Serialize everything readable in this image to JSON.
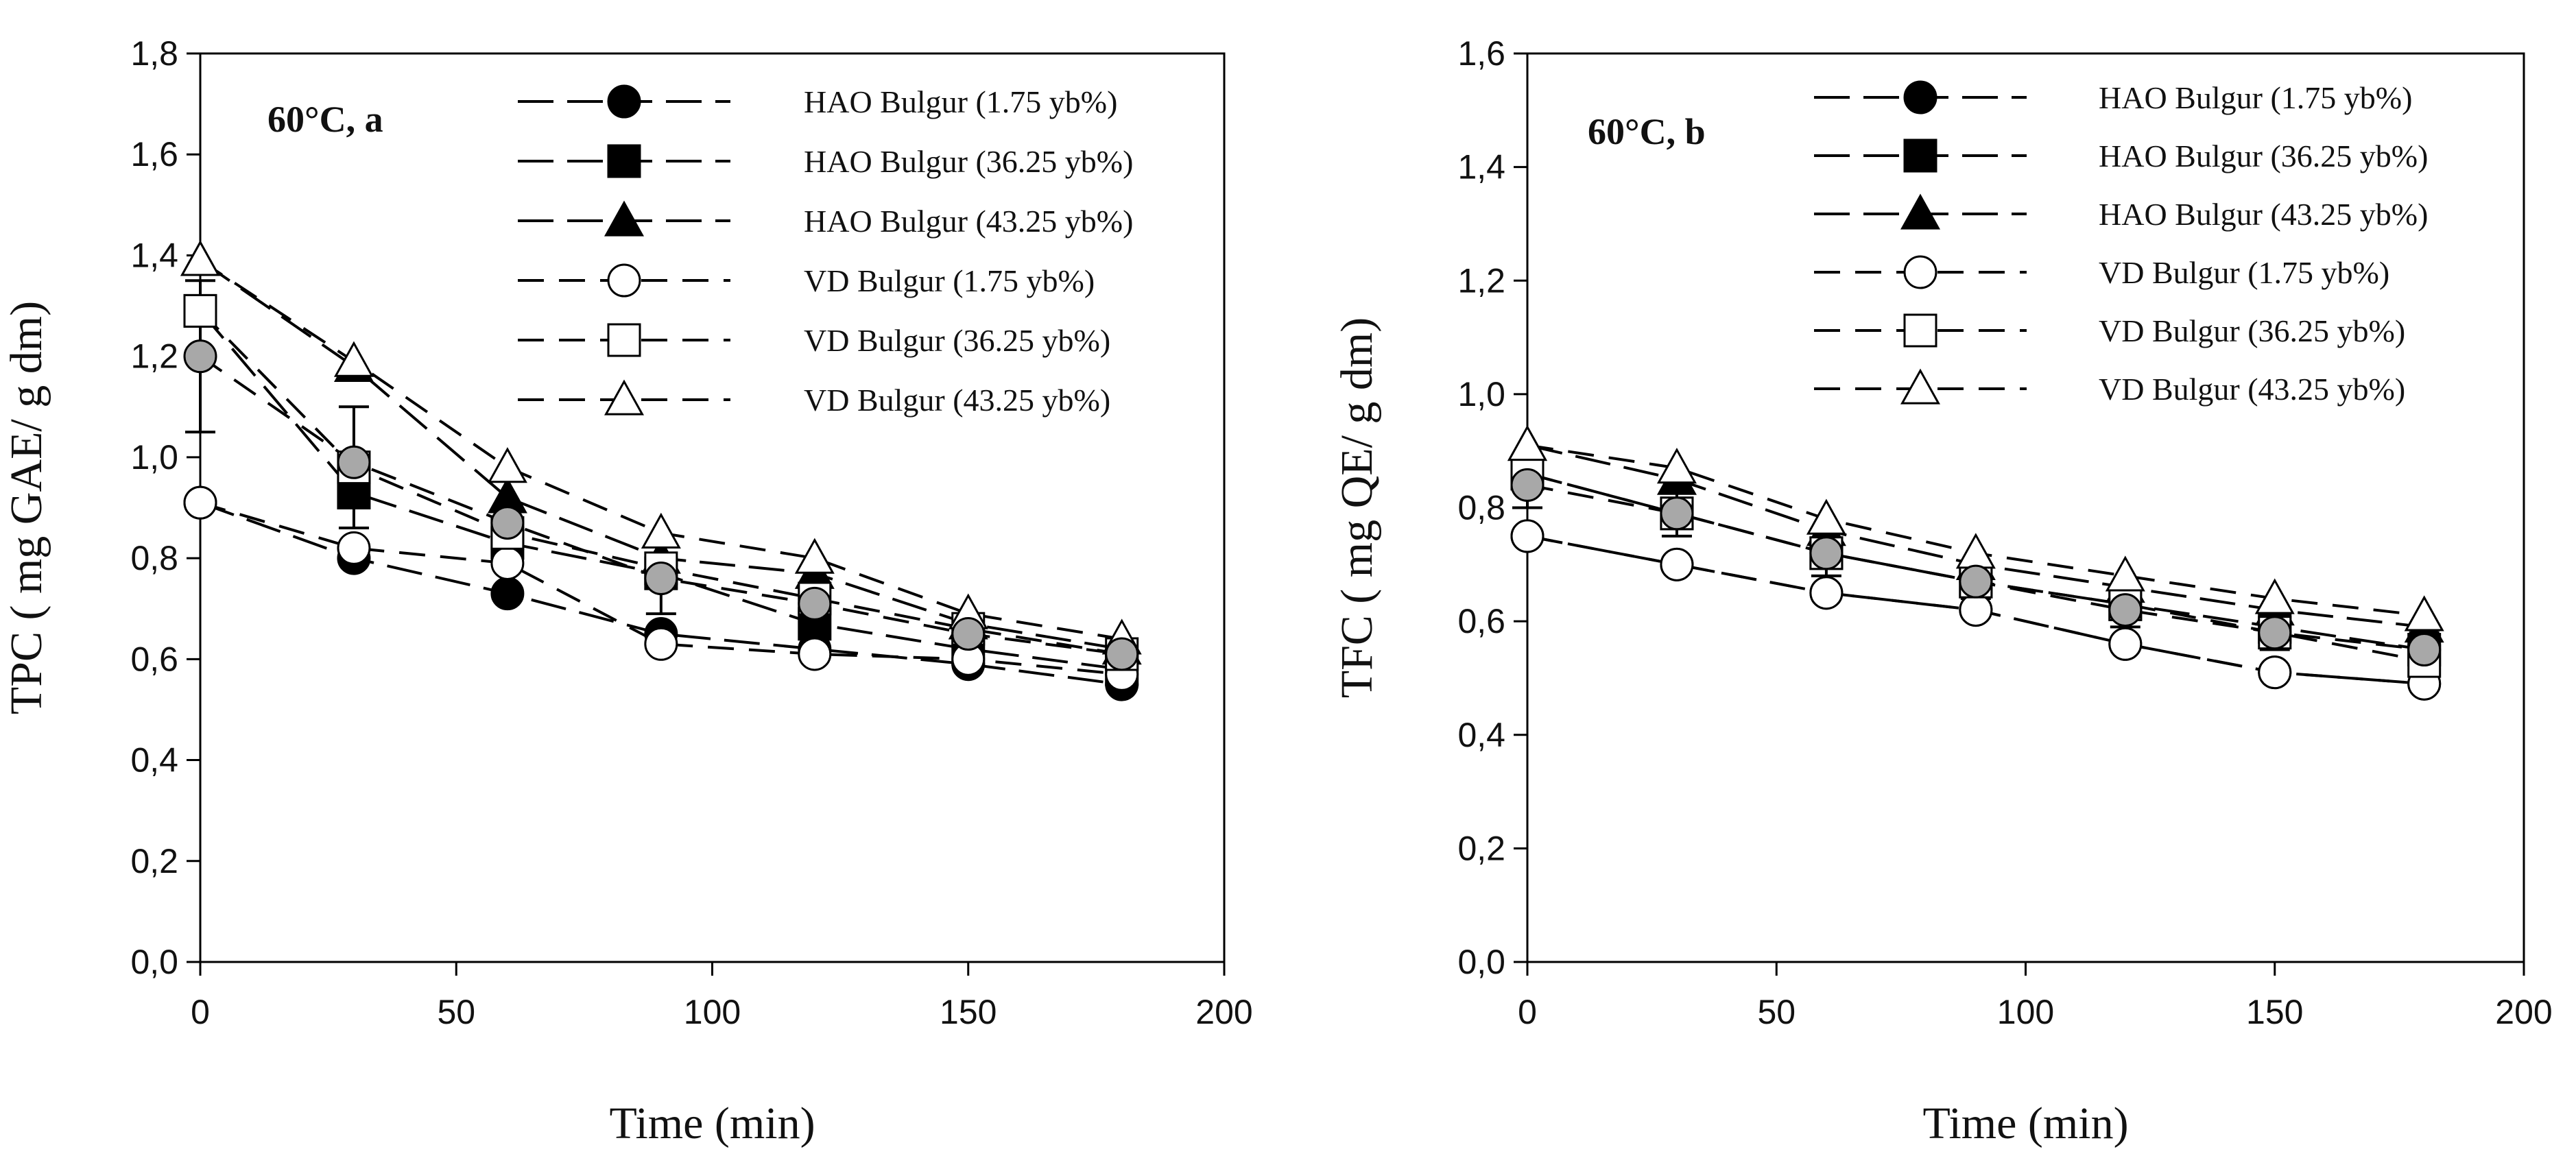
{
  "chart_data": [
    {
      "type": "line",
      "panel_label": "60°C, a",
      "xlabel": "Time (min)",
      "ylabel": "TPC ( mg GAE/ g dm)",
      "xlim": [
        0,
        200
      ],
      "ylim": [
        0,
        1.8
      ],
      "xticks": [
        0,
        50,
        100,
        150,
        200
      ],
      "xtick_labels": [
        "0",
        "50",
        "100",
        "150",
        "200"
      ],
      "yticks": [
        0,
        0.2,
        0.4,
        0.6,
        0.8,
        1.0,
        1.2,
        1.4,
        1.6,
        1.8
      ],
      "ytick_labels": [
        "0,0",
        "0,2",
        "0,4",
        "0,6",
        "0,8",
        "1,0",
        "1,2",
        "1,4",
        "1,6",
        "1,8"
      ],
      "grid": false,
      "legend_position": "top-right",
      "x": [
        0,
        30,
        60,
        90,
        120,
        150,
        180
      ],
      "series": [
        {
          "name": "HAO Bulgur (1.75 yb%)",
          "marker": "circle",
          "fill": "#000000",
          "line": "longdash",
          "values": [
            0.91,
            0.8,
            0.73,
            0.65,
            0.62,
            0.59,
            0.55
          ]
        },
        {
          "name": "HAO Bulgur (36.25 yb%)",
          "marker": "square",
          "fill": "#000000",
          "line": "longdash",
          "values": [
            1.29,
            0.93,
            0.83,
            0.77,
            0.67,
            0.62,
            0.58
          ]
        },
        {
          "name": "HAO Bulgur (43.25 yb%)",
          "marker": "triangle",
          "fill": "#000000",
          "line": "longdash",
          "values": [
            1.39,
            1.18,
            0.92,
            0.8,
            0.77,
            0.67,
            0.62
          ]
        },
        {
          "name": "VD Bulgur (1.75 yb%)",
          "marker": "circle",
          "fill": "#ffffff",
          "line": "dash",
          "values": [
            0.91,
            0.82,
            0.79,
            0.63,
            0.61,
            0.6,
            0.57
          ]
        },
        {
          "name": "VD Bulgur (36.25 yb%)",
          "marker": "square",
          "fill": "#ffffff",
          "line": "dash",
          "values": [
            1.29,
            0.98,
            0.85,
            0.78,
            0.72,
            0.66,
            0.61
          ]
        },
        {
          "name": "VD Bulgur (43.25 yb%)",
          "marker": "triangle",
          "fill": "#ffffff",
          "line": "dash",
          "values": [
            1.39,
            1.19,
            0.98,
            0.85,
            0.8,
            0.69,
            0.64
          ]
        },
        {
          "name": "",
          "marker": "circle",
          "fill": "#a8a8a8",
          "line": "dash",
          "values": [
            1.2,
            0.99,
            0.87,
            0.76,
            0.71,
            0.65,
            0.61
          ]
        }
      ],
      "error_bars": [
        {
          "x": 0,
          "y": 1.2,
          "err": 0.15
        },
        {
          "x": 30,
          "y": 0.98,
          "err": 0.12
        },
        {
          "x": 60,
          "y": 0.85,
          "err": 0.05
        },
        {
          "x": 90,
          "y": 0.74,
          "err": 0.05
        },
        {
          "x": 120,
          "y": 0.7,
          "err": 0.05
        },
        {
          "x": 150,
          "y": 0.64,
          "err": 0.02
        }
      ]
    },
    {
      "type": "line",
      "panel_label": "60°C, b",
      "xlabel": "Time (min)",
      "ylabel": "TFC ( mg QE/ g dm)",
      "xlim": [
        0,
        200
      ],
      "ylim": [
        0,
        1.6
      ],
      "xticks": [
        0,
        50,
        100,
        150,
        200
      ],
      "xtick_labels": [
        "0",
        "50",
        "100",
        "150",
        "200"
      ],
      "yticks": [
        0,
        0.2,
        0.4,
        0.6,
        0.8,
        1.0,
        1.2,
        1.4,
        1.6
      ],
      "ytick_labels": [
        "0,0",
        "0,2",
        "0,4",
        "0,6",
        "0,8",
        "1,0",
        "1,2",
        "1,4",
        "1,6"
      ],
      "grid": false,
      "legend_position": "top-right",
      "x": [
        0,
        30,
        60,
        90,
        120,
        150,
        180
      ],
      "series": [
        {
          "name": "HAO Bulgur (1.75 yb%)",
          "marker": "circle",
          "fill": "#000000",
          "line": "longdash",
          "values": [
            0.75,
            0.7,
            0.65,
            0.62,
            0.56,
            0.51,
            0.49
          ]
        },
        {
          "name": "HAO Bulgur (36.25 yb%)",
          "marker": "square",
          "fill": "#000000",
          "line": "longdash",
          "values": [
            0.86,
            0.79,
            0.72,
            0.67,
            0.63,
            0.59,
            0.55
          ]
        },
        {
          "name": "HAO Bulgur (43.25 yb%)",
          "marker": "triangle",
          "fill": "#000000",
          "line": "longdash",
          "values": [
            0.91,
            0.85,
            0.76,
            0.7,
            0.66,
            0.62,
            0.59
          ]
        },
        {
          "name": "VD Bulgur (1.75 yb%)",
          "marker": "circle",
          "fill": "#ffffff",
          "line": "dash",
          "values": [
            0.75,
            0.7,
            0.65,
            0.62,
            0.56,
            0.51,
            0.49
          ]
        },
        {
          "name": "VD Bulgur (36.25 yb%)",
          "marker": "square",
          "fill": "#ffffff",
          "line": "dash",
          "values": [
            0.86,
            0.79,
            0.72,
            0.67,
            0.63,
            0.58,
            0.53
          ]
        },
        {
          "name": "VD Bulgur (43.25 yb%)",
          "marker": "triangle",
          "fill": "#ffffff",
          "line": "dash",
          "values": [
            0.91,
            0.87,
            0.78,
            0.72,
            0.68,
            0.64,
            0.61
          ]
        },
        {
          "name": "",
          "marker": "circle",
          "fill": "#a8a8a8",
          "line": "dash",
          "values": [
            0.84,
            0.79,
            0.72,
            0.67,
            0.62,
            0.58,
            0.55
          ]
        }
      ],
      "error_bars": [
        {
          "x": 0,
          "y": 0.84,
          "err": 0.04
        },
        {
          "x": 30,
          "y": 0.79,
          "err": 0.04
        },
        {
          "x": 60,
          "y": 0.72,
          "err": 0.04
        },
        {
          "x": 90,
          "y": 0.67,
          "err": 0.03
        },
        {
          "x": 120,
          "y": 0.62,
          "err": 0.03
        },
        {
          "x": 150,
          "y": 0.58,
          "err": 0.03
        },
        {
          "x": 180,
          "y": 0.55,
          "err": 0.03
        }
      ]
    }
  ]
}
